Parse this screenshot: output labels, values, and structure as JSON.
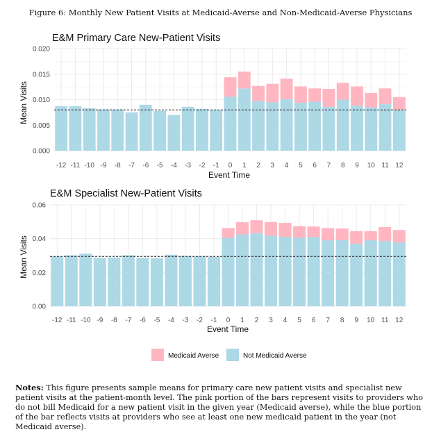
{
  "figure_title": "Figure 6: Monthly New Patient Visits at Medicaid-Averse and Non-Medicaid-Averse Physicians",
  "notes_label": "Notes:",
  "notes_text": "This figure presents sample means for primary care new patient visits and specialist new patient visits at the patient-month level. The pink portion of the bars represent visits to providers who do not bill Medicaid for a new patient visit in the given year (Medicaid averse), while the blue portion of the bar reflects visits at providers who see at least one new medicaid patient in the year (not Medicaid averse).",
  "legend": [
    {
      "label": "Medicaid Averse",
      "color": "#ffb6c1"
    },
    {
      "label": "Not Medicaid Averse",
      "color": "#add8e6"
    }
  ],
  "chart_data": [
    {
      "type": "bar",
      "stacked": true,
      "title": "E&M Primary Care New-Patient Visits",
      "xlabel": "Event Time",
      "ylabel": "Mean Visits",
      "categories": [
        "-12",
        "-11",
        "-10",
        "-9",
        "-8",
        "-7",
        "-6",
        "-5",
        "-4",
        "-3",
        "-2",
        "-1",
        "0",
        "1",
        "2",
        "3",
        "4",
        "5",
        "6",
        "7",
        "8",
        "9",
        "10",
        "11",
        "12"
      ],
      "ylim": [
        0,
        0.02
      ],
      "yticks": [
        "0.000",
        "0.005",
        "0.010",
        "0.015",
        "0.020"
      ],
      "yticks_values": [
        0,
        0.005,
        0.01,
        0.015,
        0.02
      ],
      "reference_line": 0.008,
      "series": [
        {
          "name": "Not Medicaid Averse",
          "color": "#add8e6",
          "values": [
            0.0087,
            0.0087,
            0.0083,
            0.0081,
            0.0081,
            0.0075,
            0.009,
            0.0078,
            0.007,
            0.0086,
            0.0082,
            0.008,
            0.0106,
            0.0122,
            0.0097,
            0.0095,
            0.0101,
            0.0094,
            0.0096,
            0.0086,
            0.01,
            0.0088,
            0.0085,
            0.0091,
            0.008
          ]
        },
        {
          "name": "Medicaid Averse",
          "color": "#ffb6c1",
          "values": [
            0,
            0,
            0,
            0,
            0,
            0,
            0,
            0,
            0,
            0,
            0,
            0,
            0.0038,
            0.0033,
            0.003,
            0.0036,
            0.004,
            0.0032,
            0.0026,
            0.0035,
            0.0033,
            0.0038,
            0.0028,
            0.0031,
            0.0025
          ]
        }
      ],
      "grid": true
    },
    {
      "type": "bar",
      "stacked": true,
      "title": "E&M Specialist New-Patient Visits",
      "xlabel": "Event Time",
      "ylabel": "Mean Visits",
      "categories": [
        "-12",
        "-11",
        "-10",
        "-9",
        "-8",
        "-7",
        "-6",
        "-5",
        "-4",
        "-3",
        "-2",
        "-1",
        "0",
        "1",
        "2",
        "3",
        "4",
        "5",
        "6",
        "7",
        "8",
        "9",
        "10",
        "11",
        "12"
      ],
      "ylim": [
        0,
        0.06
      ],
      "yticks": [
        "0.00",
        "0.02",
        "0.04",
        "0.06"
      ],
      "yticks_values": [
        0,
        0.02,
        0.04,
        0.06
      ],
      "reference_line": 0.0295,
      "series": [
        {
          "name": "Not Medicaid Averse",
          "color": "#add8e6",
          "values": [
            0.0295,
            0.0302,
            0.0311,
            0.0286,
            0.0289,
            0.0302,
            0.0287,
            0.0284,
            0.0305,
            0.0297,
            0.0295,
            0.0292,
            0.0405,
            0.0425,
            0.0432,
            0.0417,
            0.0411,
            0.0405,
            0.041,
            0.039,
            0.0392,
            0.037,
            0.0391,
            0.0386,
            0.0378
          ]
        },
        {
          "name": "Medicaid Averse",
          "color": "#ffb6c1",
          "values": [
            0,
            0,
            0,
            0,
            0,
            0,
            0,
            0,
            0,
            0,
            0,
            0,
            0.0058,
            0.0073,
            0.0077,
            0.0081,
            0.0082,
            0.0069,
            0.0062,
            0.0073,
            0.0068,
            0.0075,
            0.0054,
            0.0083,
            0.0073
          ]
        }
      ],
      "grid": true
    }
  ]
}
